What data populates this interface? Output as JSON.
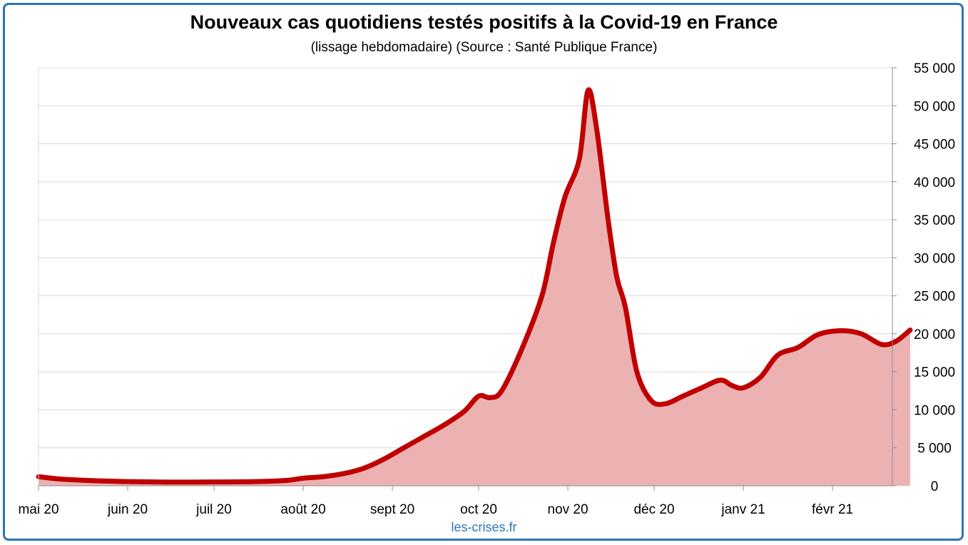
{
  "chart_data": {
    "type": "area",
    "title": "Nouveaux cas quotidiens testés positifs à la Covid-19 en France",
    "subtitle": "(lissage hebdomadaire) (Source : Santé Publique France)",
    "xlabel": "",
    "ylabel": "",
    "ylim": [
      0,
      55000
    ],
    "y_axis_position": "right",
    "grid": true,
    "colors": {
      "line": "#c00000",
      "fill": "#ecb2b2",
      "grid": "#d9d9d9",
      "frame": "#2e75b6"
    },
    "x_tick_labels": [
      "mai 20",
      "juin 20",
      "juil 20",
      "août 20",
      "sept 20",
      "oct 20",
      "nov 20",
      "déc 20",
      "janv 21",
      "févr 21"
    ],
    "y_tick_values": [
      0,
      5000,
      10000,
      15000,
      20000,
      25000,
      30000,
      35000,
      40000,
      45000,
      50000,
      55000
    ],
    "y_tick_labels": [
      "0",
      "5 000",
      "10 000",
      "15 000",
      "20 000",
      "25 000",
      "30 000",
      "35 000",
      "40 000",
      "45 000",
      "50 000",
      "55 000"
    ],
    "series": [
      {
        "values_by_date": [
          [
            "2020-05-01",
            1200
          ],
          [
            "2020-05-08",
            900
          ],
          [
            "2020-05-15",
            750
          ],
          [
            "2020-05-22",
            650
          ],
          [
            "2020-06-01",
            550
          ],
          [
            "2020-06-15",
            480
          ],
          [
            "2020-07-01",
            500
          ],
          [
            "2020-07-15",
            550
          ],
          [
            "2020-07-26",
            700
          ],
          [
            "2020-08-01",
            1000
          ],
          [
            "2020-08-08",
            1200
          ],
          [
            "2020-08-15",
            1600
          ],
          [
            "2020-08-22",
            2300
          ],
          [
            "2020-08-29",
            3500
          ],
          [
            "2020-09-05",
            5000
          ],
          [
            "2020-09-12",
            6500
          ],
          [
            "2020-09-19",
            8000
          ],
          [
            "2020-09-26",
            9800
          ],
          [
            "2020-10-01",
            11800
          ],
          [
            "2020-10-05",
            11600
          ],
          [
            "2020-10-09",
            12500
          ],
          [
            "2020-10-16",
            18000
          ],
          [
            "2020-10-23",
            25000
          ],
          [
            "2020-10-27",
            32000
          ],
          [
            "2020-10-31",
            38000
          ],
          [
            "2020-11-05",
            43000
          ],
          [
            "2020-11-08",
            52000
          ],
          [
            "2020-11-11",
            47000
          ],
          [
            "2020-11-15",
            35000
          ],
          [
            "2020-11-18",
            27500
          ],
          [
            "2020-11-21",
            23500
          ],
          [
            "2020-11-25",
            15000
          ],
          [
            "2020-11-30",
            11200
          ],
          [
            "2020-12-05",
            10800
          ],
          [
            "2020-12-11",
            11800
          ],
          [
            "2020-12-17",
            12800
          ],
          [
            "2020-12-24",
            13900
          ],
          [
            "2020-12-28",
            13200
          ],
          [
            "2021-01-01",
            12900
          ],
          [
            "2021-01-07",
            14300
          ],
          [
            "2021-01-13",
            17200
          ],
          [
            "2021-01-20",
            18200
          ],
          [
            "2021-01-27",
            19900
          ],
          [
            "2021-02-04",
            20400
          ],
          [
            "2021-02-11",
            20000
          ],
          [
            "2021-02-18",
            18600
          ],
          [
            "2021-02-23",
            19000
          ],
          [
            "2021-02-28",
            20500
          ]
        ]
      }
    ]
  },
  "credit": "les-crises.fr"
}
